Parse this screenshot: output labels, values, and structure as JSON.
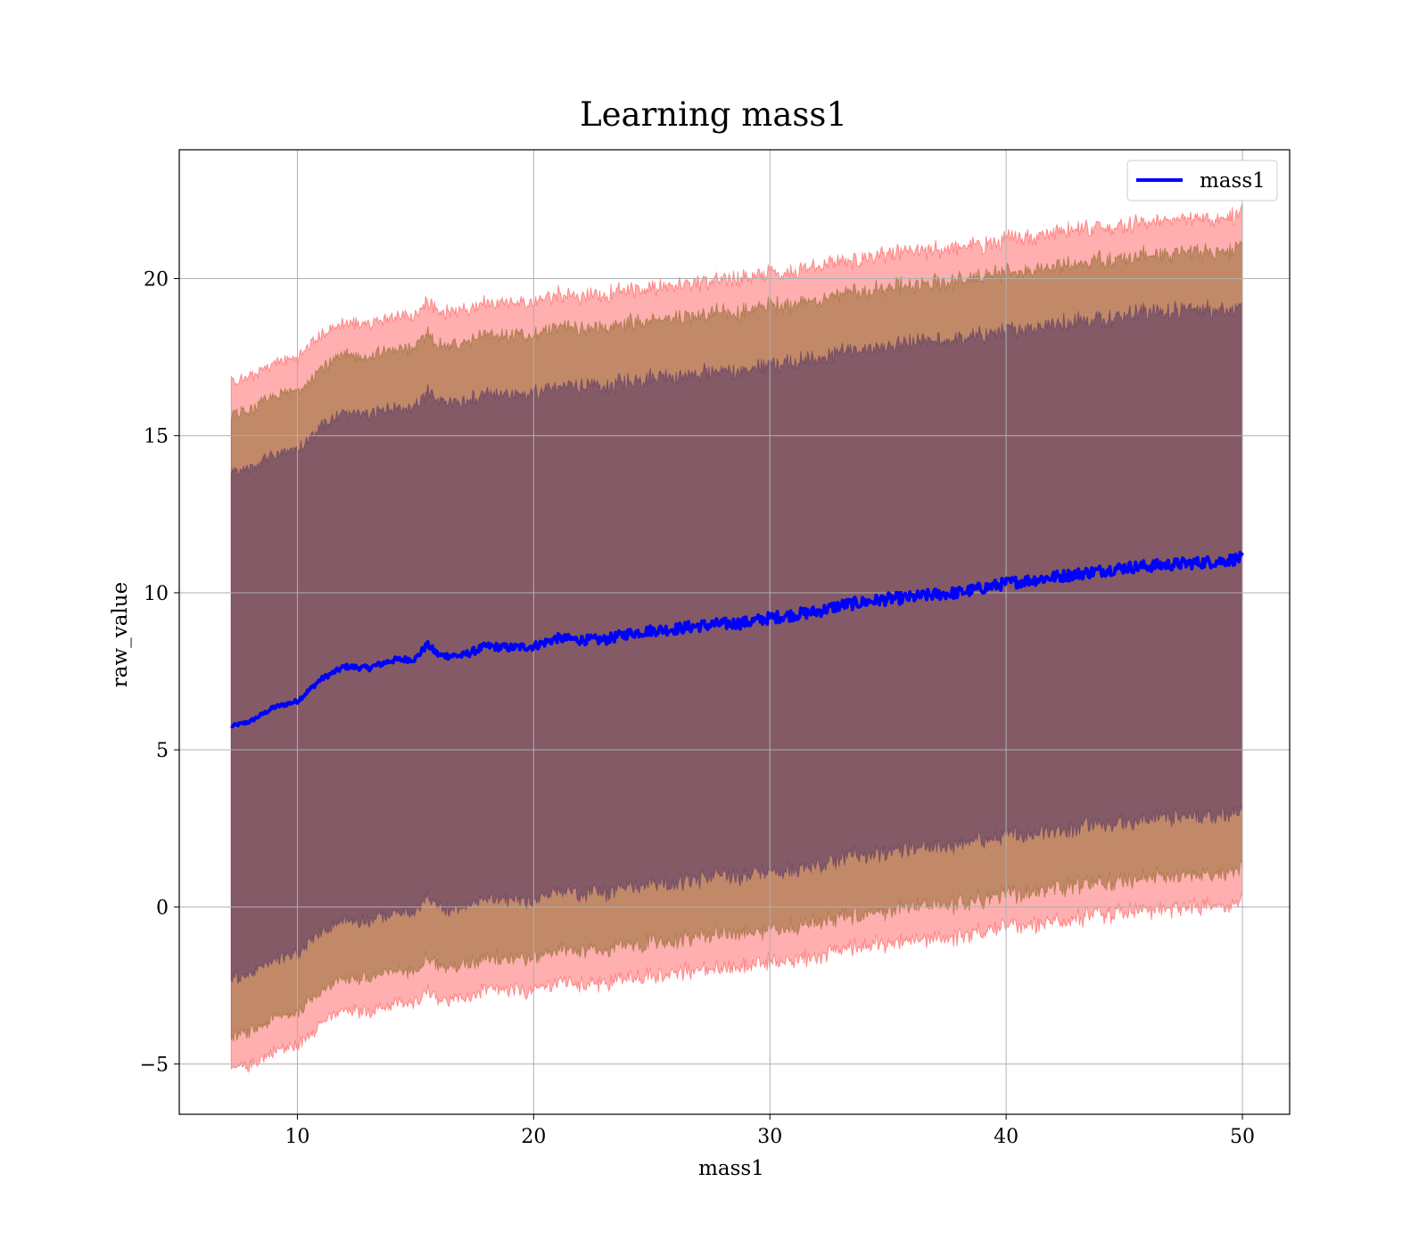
{
  "chart_data": {
    "type": "line",
    "title": "Learning mass1",
    "xlabel": "mass1",
    "ylabel": "raw_value",
    "xlim": [
      5,
      52
    ],
    "ylim": [
      -6.6,
      24.1
    ],
    "xticks": [
      10,
      20,
      30,
      40,
      50
    ],
    "yticks": [
      -5,
      0,
      5,
      10,
      15,
      20
    ],
    "grid": true,
    "legend": {
      "placement": "top-right",
      "entries": [
        {
          "name": "mass1",
          "color": "#0000ff"
        }
      ]
    },
    "colors": {
      "line": "#0000ff",
      "outer_band": "#ff4d4d",
      "middle_band": "#8f6a2e",
      "inner_band": "#5a3a66"
    },
    "series": [
      {
        "name": "mass1",
        "x": [
          7.2,
          8,
          9,
          10,
          11,
          12,
          13,
          14,
          15,
          15.5,
          16,
          17,
          18,
          19,
          20,
          21,
          22,
          23,
          24,
          25,
          26,
          27,
          28,
          29,
          30,
          31,
          32,
          33,
          34,
          35,
          36,
          37,
          38,
          39,
          40,
          41,
          42,
          43,
          44,
          45,
          46,
          47,
          48,
          49,
          50
        ],
        "values": [
          5.75,
          5.9,
          6.35,
          6.55,
          7.25,
          7.65,
          7.6,
          7.85,
          7.9,
          8.35,
          8.0,
          8.0,
          8.3,
          8.25,
          8.3,
          8.55,
          8.5,
          8.5,
          8.7,
          8.8,
          8.85,
          8.95,
          9.0,
          9.05,
          9.2,
          9.3,
          9.4,
          9.6,
          9.7,
          9.8,
          9.85,
          9.95,
          10.0,
          10.15,
          10.3,
          10.4,
          10.5,
          10.6,
          10.7,
          10.8,
          10.85,
          10.9,
          10.95,
          11.0,
          11.1
        ]
      }
    ],
    "bands": [
      {
        "label": "outer",
        "upper_offset": 10.95,
        "lower_offset": 10.95
      },
      {
        "label": "middle",
        "upper_offset": 9.9,
        "lower_offset": 9.9
      },
      {
        "label": "inner",
        "upper_offset": 8.05,
        "lower_offset": 8.05
      }
    ]
  }
}
